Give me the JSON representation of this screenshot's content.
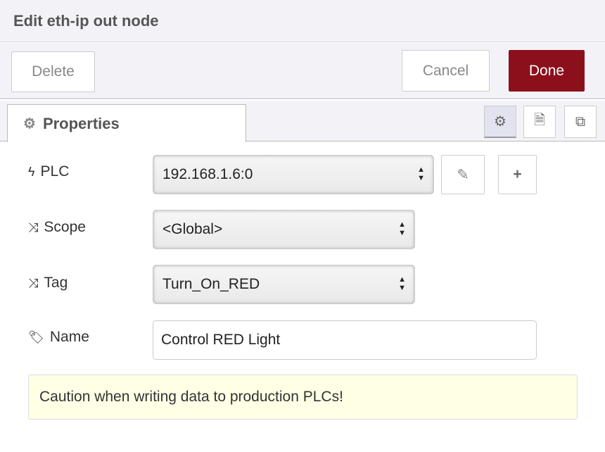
{
  "header": {
    "title": "Edit eth-ip out node"
  },
  "toolbar": {
    "delete": "Delete",
    "cancel": "Cancel",
    "done": "Done"
  },
  "tabs": {
    "properties": "Properties"
  },
  "form": {
    "plc": {
      "label": "PLC",
      "value": "192.168.1.6:0"
    },
    "scope": {
      "label": "Scope",
      "value": "<Global>"
    },
    "tag": {
      "label": "Tag",
      "value": "Turn_On_RED"
    },
    "name": {
      "label": "Name",
      "value": "Control RED Light"
    }
  },
  "note": "Caution when writing data to production PLCs!",
  "colors": {
    "done": "#8c101c",
    "note_bg": "#ffffe6"
  }
}
